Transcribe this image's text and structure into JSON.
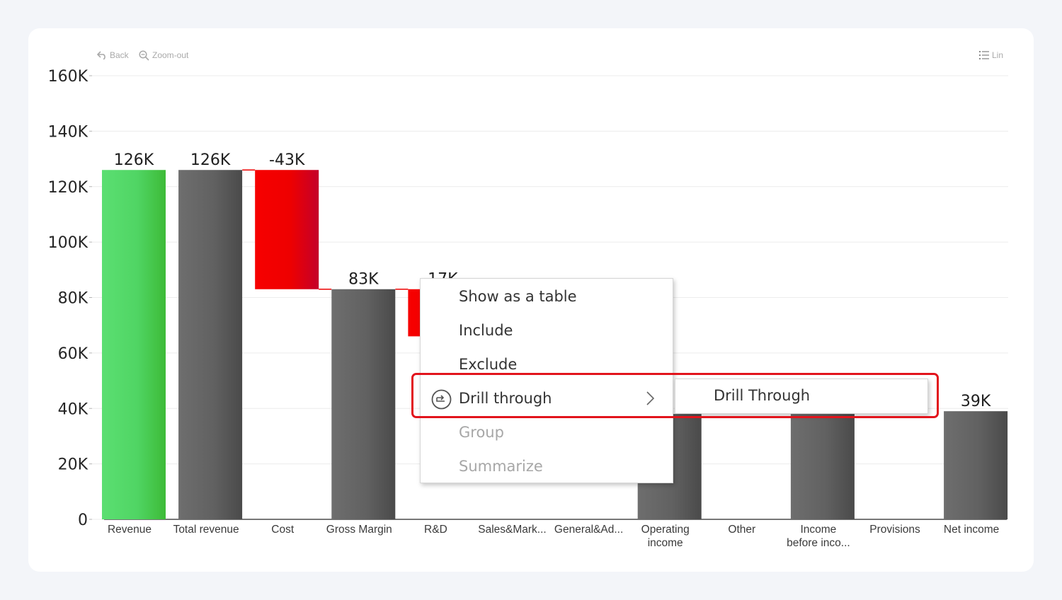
{
  "toolbar": {
    "back_label": "Back",
    "zoom_out_label": "Zoom-out",
    "scale_label": "Lin",
    "back_icon": "undo-arrow-icon",
    "zoom_icon": "magnifier-minus-icon",
    "scale_icon": "list-lines-icon"
  },
  "colors": {
    "revenue": "#4cd35c",
    "total": "#5c5c5c",
    "negative": "#ee0000",
    "highlight": "#e2141c",
    "grid": "#ececec"
  },
  "chart_data": {
    "type": "bar",
    "subtype": "waterfall",
    "ylim": [
      0,
      160000
    ],
    "y_ticks": [
      "0",
      "20K",
      "40K",
      "60K",
      "80K",
      "100K",
      "120K",
      "140K",
      "160K"
    ],
    "grid": true,
    "categories": [
      "Revenue",
      "Total revenue",
      "Cost",
      "Gross Margin",
      "R&D",
      "Sales&Mark...",
      "General&Ad...",
      "Operating income",
      "Other",
      "Income before inco...",
      "Provisions",
      "Net income"
    ],
    "bars": [
      {
        "kind": "revenue",
        "start": 0,
        "end": 126000,
        "label": "126K"
      },
      {
        "kind": "total",
        "start": 0,
        "end": 126000,
        "label": "126K"
      },
      {
        "kind": "negative",
        "start": 126000,
        "end": 83000,
        "label": "-43K"
      },
      {
        "kind": "total",
        "start": 0,
        "end": 83000,
        "label": "83K"
      },
      {
        "kind": "negative",
        "start": 83000,
        "end": 66000,
        "label": "-17K"
      },
      {
        "kind": "hidden",
        "start": 0,
        "end": 0,
        "label": ""
      },
      {
        "kind": "hidden",
        "start": 0,
        "end": 0,
        "label": ""
      },
      {
        "kind": "total",
        "start": 0,
        "end": 38000,
        "label": ""
      },
      {
        "kind": "hidden",
        "start": 0,
        "end": 0,
        "label": ""
      },
      {
        "kind": "total",
        "start": 0,
        "end": 38000,
        "label": ""
      },
      {
        "kind": "hidden",
        "start": 0,
        "end": 0,
        "label": ""
      },
      {
        "kind": "total",
        "start": 0,
        "end": 39000,
        "label": "39K"
      }
    ]
  },
  "context_menu": {
    "items": [
      {
        "label": "Show as a table",
        "enabled": true
      },
      {
        "label": "Include",
        "enabled": true
      },
      {
        "label": "Exclude",
        "enabled": true
      },
      {
        "label": "Drill through",
        "enabled": true,
        "icon": "drill-through-icon",
        "submenu_icon": "chevron-right-icon"
      },
      {
        "label": "Group",
        "enabled": false
      },
      {
        "label": "Summarize",
        "enabled": false
      }
    ],
    "submenu": {
      "label": "Drill Through"
    }
  }
}
